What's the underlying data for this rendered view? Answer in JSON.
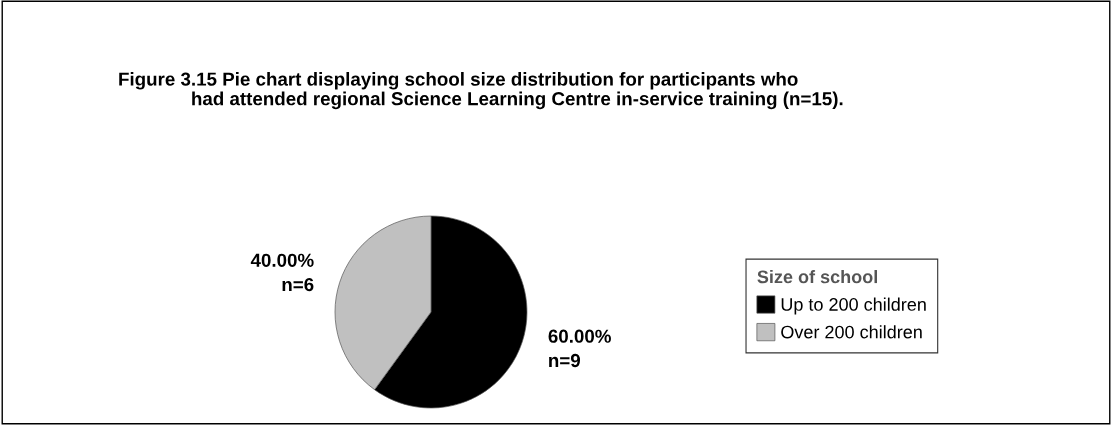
{
  "chart_data": {
    "type": "pie",
    "title": "Figure 3.15 Pie chart displaying school size distribution for participants who\n              had attended regional Science Learning Centre in-service training (n=15).",
    "categories": [
      "Up to 200 children",
      "Over 200 children"
    ],
    "values": [
      60,
      40
    ],
    "colors": [
      "#000000",
      "#c0c0c0"
    ],
    "value_labels": [
      "60.00%\nn=9",
      "40.00%\nn=6"
    ],
    "legend_title": "Size of school",
    "legend": "right"
  }
}
